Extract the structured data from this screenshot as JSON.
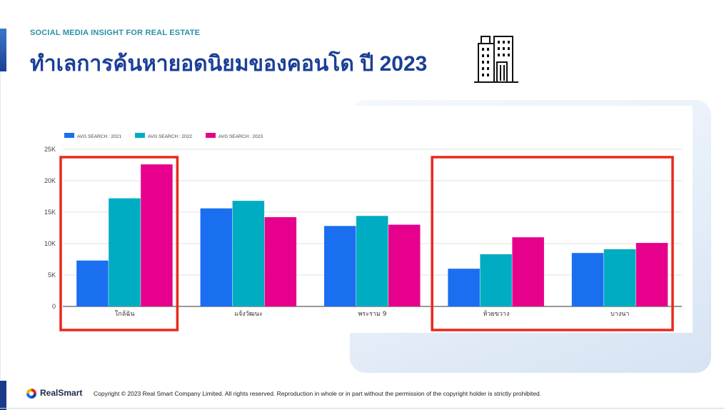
{
  "header": {
    "subtitle": "SOCIAL MEDIA INSIGHT FOR REAL ESTATE",
    "title": "ทำเลการค้นหายอดนิยมของคอนโด ปี 2023"
  },
  "icons": {
    "header_icon": "buildings-icon",
    "brand_icon": "realsmart-logo-icon"
  },
  "chart_data": {
    "type": "bar",
    "categories": [
      "ใกล้ฉัน",
      "แจ้งวัฒนะ",
      "พระราม 9",
      "ห้วยขวาง",
      "บางนา"
    ],
    "series": [
      {
        "name": "AVG SEARCH : 2021",
        "color": "#1a6ef0",
        "values": [
          7300,
          15600,
          12800,
          6000,
          8500
        ]
      },
      {
        "name": "AVG SEARCH : 2022",
        "color": "#00acc1",
        "values": [
          17200,
          16800,
          14400,
          8300,
          9100
        ]
      },
      {
        "name": "AVG SEARCH : 2023",
        "color": "#e6008b",
        "values": [
          22600,
          14200,
          13000,
          11000,
          10100
        ]
      }
    ],
    "yticks": [
      "0",
      "5K",
      "10K",
      "15K",
      "20K",
      "25K"
    ],
    "ylim": [
      0,
      25000
    ],
    "grid": true,
    "legend": "top-left",
    "highlight_color": "#e8291c",
    "highlighted_categories": [
      "ใกล้ฉัน",
      "ห้วยขวาง",
      "บางนา"
    ]
  },
  "footer": {
    "brand": "RealSmart",
    "copyright": "Copyright © 2023 Real Smart Company Limited. All rights reserved. Reproduction in whole  or in part without the permission of the copyright holder is strictly prohibited."
  }
}
